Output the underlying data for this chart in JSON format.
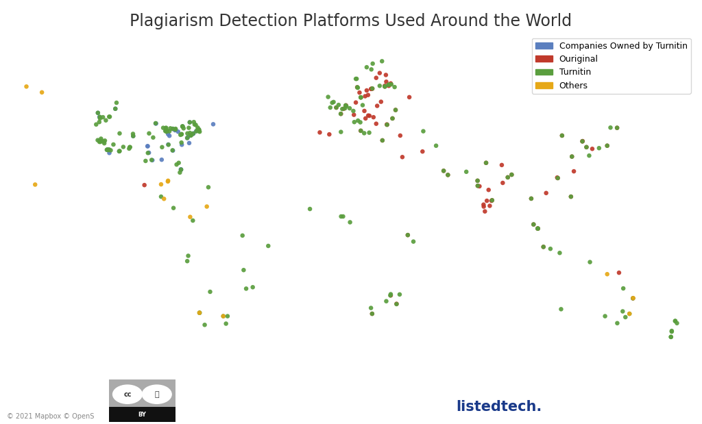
{
  "title": "Plagiarism Detection Platforms Used Around the World",
  "title_fontsize": 17,
  "background_color": "#ffffff",
  "map_land_color": "#e0e0e0",
  "map_ocean_color": "#ffffff",
  "map_border_color": "#ffffff",
  "legend": {
    "labels": [
      "Companies Owned by Turnitin",
      "Ouriginal",
      "Turnitin",
      "Others"
    ],
    "colors": [
      "#5b7fbf",
      "#c0392b",
      "#5a9e3e",
      "#e6a817"
    ]
  },
  "categories": {
    "turnitin_companies": {
      "color": "#5b7fbf",
      "points": [
        [
          -122.4,
          37.8
        ],
        [
          -118.2,
          34.1
        ],
        [
          -87.6,
          41.8
        ],
        [
          -77.0,
          38.9
        ],
        [
          -71.1,
          42.4
        ],
        [
          -73.9,
          40.7
        ],
        [
          -122.3,
          47.6
        ],
        [
          -104.9,
          39.7
        ],
        [
          -84.4,
          33.7
        ],
        [
          -80.2,
          25.8
        ],
        [
          -112.1,
          33.4
        ],
        [
          -117.2,
          32.7
        ],
        [
          -97.4,
          35.5
        ],
        [
          -96.8,
          32.8
        ],
        [
          -90.2,
          29.9
        ],
        [
          -83.0,
          42.3
        ],
        [
          -86.8,
          36.2
        ],
        [
          -81.7,
          41.5
        ],
        [
          -75.2,
          40.0
        ],
        [
          -76.6,
          39.3
        ],
        [
          -93.3,
          44.9
        ],
        [
          -123.1,
          49.3
        ],
        [
          -79.4,
          43.7
        ],
        [
          -114.1,
          51.0
        ],
        [
          -75.7,
          45.4
        ],
        [
          -63.6,
          44.6
        ],
        [
          -71.1,
          42.4
        ],
        [
          -72.3,
          41.8
        ],
        [
          -88.0,
          42.0
        ],
        [
          -93.1,
          44.9
        ],
        [
          -95.0,
          29.7
        ],
        [
          -97.5,
          35.5
        ],
        [
          -80.3,
          25.9
        ],
        [
          -117.3,
          34.1
        ],
        [
          -118.3,
          34.0
        ],
        [
          -122.1,
          37.7
        ],
        [
          -73.8,
          40.8
        ],
        [
          -74.1,
          40.6
        ],
        [
          -76.0,
          36.8
        ],
        [
          -79.8,
          36.1
        ],
        [
          -84.5,
          42.7
        ],
        [
          -83.3,
          42.1
        ],
        [
          -86.2,
          39.8
        ],
        [
          -86.9,
          40.5
        ]
      ]
    },
    "ouriginal": {
      "color": "#c0392b",
      "points": [
        [
          18.1,
          59.3
        ],
        [
          10.7,
          59.9
        ],
        [
          12.6,
          55.7
        ],
        [
          25.0,
          60.2
        ],
        [
          24.9,
          60.5
        ],
        [
          28.0,
          61.5
        ],
        [
          10.0,
          53.6
        ],
        [
          9.0,
          48.5
        ],
        [
          16.4,
          48.2
        ],
        [
          14.4,
          50.1
        ],
        [
          19.1,
          47.5
        ],
        [
          21.0,
          52.2
        ],
        [
          23.7,
          37.9
        ],
        [
          12.5,
          41.9
        ],
        [
          2.3,
          48.9
        ],
        [
          -0.1,
          51.5
        ],
        [
          -3.7,
          40.4
        ],
        [
          -8.6,
          41.2
        ],
        [
          4.9,
          52.4
        ],
        [
          3.7,
          51.0
        ],
        [
          15.0,
          47.0
        ],
        [
          20.5,
          44.8
        ],
        [
          26.1,
          44.4
        ],
        [
          28.9,
          47.0
        ],
        [
          30.5,
          50.5
        ],
        [
          37.6,
          55.8
        ],
        [
          44.4,
          33.3
        ],
        [
          57.5,
          23.6
        ],
        [
          73.8,
          18.9
        ],
        [
          72.9,
          19.1
        ],
        [
          77.2,
          28.6
        ],
        [
          80.3,
          13.1
        ],
        [
          88.4,
          22.6
        ],
        [
          85.3,
          27.7
        ],
        [
          90.4,
          23.7
        ],
        [
          101.7,
          3.1
        ],
        [
          106.8,
          -6.2
        ],
        [
          104.0,
          1.4
        ],
        [
          121.0,
          14.6
        ],
        [
          114.2,
          22.3
        ],
        [
          121.5,
          31.2
        ],
        [
          116.4,
          39.9
        ],
        [
          129.0,
          35.1
        ],
        [
          139.7,
          35.7
        ],
        [
          32.9,
          39.9
        ],
        [
          -99.1,
          19.4
        ],
        [
          36.8,
          -1.3
        ],
        [
          18.4,
          -33.9
        ],
        [
          31.0,
          -29.8
        ],
        [
          28.0,
          -26.3
        ],
        [
          145.8,
          -16.9
        ],
        [
          153.0,
          -27.5
        ],
        [
          17.0,
          48.1
        ],
        [
          23.0,
          53.9
        ],
        [
          26.0,
          44.5
        ],
        [
          34.0,
          31.0
        ],
        [
          55.3,
          25.3
        ],
        [
          103.8,
          1.4
        ],
        [
          100.5,
          13.8
        ],
        [
          108.2,
          16.1
        ],
        [
          122.5,
          25.1
        ],
        [
          113.9,
          22.5
        ],
        [
          127.0,
          37.6
        ],
        [
          126.9,
          37.5
        ],
        [
          144.8,
          43.1
        ],
        [
          132.0,
          34.4
        ],
        [
          80.0,
          12.9
        ],
        [
          77.6,
          12.9
        ],
        [
          78.5,
          17.4
        ],
        [
          72.8,
          21.2
        ],
        [
          85.8,
          20.3
        ],
        [
          76.6,
          8.5
        ],
        [
          76.0,
          10.5
        ],
        [
          75.9,
          11.3
        ],
        [
          79.1,
          10.8
        ],
        [
          18.5,
          59.3
        ],
        [
          17.8,
          59.2
        ],
        [
          15.6,
          58.6
        ],
        [
          11.9,
          57.7
        ],
        [
          14.8,
          56.2
        ],
        [
          16.3,
          56.7
        ],
        [
          20.5,
          63.8
        ],
        [
          22.3,
          65.8
        ],
        [
          25.7,
          62.2
        ],
        [
          27.0,
          60.5
        ],
        [
          25.5,
          65.0
        ]
      ]
    },
    "turnitin": {
      "color": "#5a9e3e",
      "points": [
        [
          -120.5,
          47.5
        ],
        [
          -122.0,
          47.0
        ],
        [
          -119.0,
          46.2
        ],
        [
          -117.0,
          47.7
        ],
        [
          -122.4,
          45.5
        ],
        [
          -124.0,
          44.5
        ],
        [
          -121.5,
          38.6
        ],
        [
          -118.5,
          34.0
        ],
        [
          -117.9,
          33.9
        ],
        [
          -116.5,
          33.8
        ],
        [
          -111.9,
          33.5
        ],
        [
          -106.7,
          35.1
        ],
        [
          -97.3,
          32.7
        ],
        [
          -95.4,
          29.8
        ],
        [
          -98.5,
          29.4
        ],
        [
          -86.2,
          41.7
        ],
        [
          -87.7,
          41.5
        ],
        [
          -83.1,
          42.4
        ],
        [
          -78.9,
          42.9
        ],
        [
          -76.2,
          43.1
        ],
        [
          -71.0,
          42.4
        ],
        [
          -70.9,
          42.3
        ],
        [
          -72.3,
          41.7
        ],
        [
          -74.0,
          40.7
        ],
        [
          -75.3,
          40.0
        ],
        [
          -77.0,
          38.9
        ],
        [
          -80.0,
          37.0
        ],
        [
          -81.4,
          28.6
        ],
        [
          -82.5,
          27.9
        ],
        [
          -84.6,
          33.8
        ],
        [
          -86.7,
          36.1
        ],
        [
          -90.0,
          35.1
        ],
        [
          -94.6,
          39.1
        ],
        [
          -93.3,
          45.0
        ],
        [
          -96.7,
          40.8
        ],
        [
          -104.9,
          39.7
        ],
        [
          -111.9,
          40.8
        ],
        [
          -112.1,
          33.4
        ],
        [
          -118.0,
          34.1
        ],
        [
          -115.1,
          36.2
        ],
        [
          -122.3,
          37.3
        ],
        [
          -123.2,
          38.0
        ],
        [
          -121.0,
          37.7
        ],
        [
          -80.2,
          25.8
        ],
        [
          -80.8,
          24.6
        ],
        [
          -66.1,
          18.5
        ],
        [
          -79.5,
          43.7
        ],
        [
          -75.7,
          45.4
        ],
        [
          -73.6,
          45.5
        ],
        [
          -123.1,
          49.3
        ],
        [
          -113.5,
          53.5
        ],
        [
          -114.1,
          51.0
        ],
        [
          -79.4,
          43.7
        ],
        [
          -57.0,
          -38.0
        ],
        [
          -68.0,
          -38.5
        ],
        [
          -65.2,
          -24.8
        ],
        [
          -47.9,
          -15.8
        ],
        [
          -43.2,
          -22.9
        ],
        [
          -46.6,
          -23.5
        ],
        [
          -48.5,
          -1.5
        ],
        [
          -35.2,
          -5.8
        ],
        [
          -70.6,
          -33.5
        ],
        [
          -76.5,
          -9.9
        ],
        [
          -77.0,
          -12.1
        ],
        [
          -58.4,
          -34.9
        ],
        [
          -56.2,
          -34.9
        ],
        [
          -70.7,
          -33.5
        ],
        [
          -74.1,
          4.7
        ],
        [
          -84.1,
          9.9
        ],
        [
          -90.5,
          14.6
        ],
        [
          -13.7,
          9.5
        ],
        [
          2.4,
          6.4
        ],
        [
          3.4,
          6.4
        ],
        [
          7.0,
          4.0
        ],
        [
          36.8,
          -1.3
        ],
        [
          39.7,
          -4.0
        ],
        [
          28.0,
          -25.8
        ],
        [
          31.0,
          -29.9
        ],
        [
          18.4,
          -33.9
        ],
        [
          32.6,
          -25.9
        ],
        [
          27.8,
          -26.3
        ],
        [
          25.7,
          -28.7
        ],
        [
          17.8,
          -31.5
        ],
        [
          173.0,
          -41.3
        ],
        [
          174.8,
          -36.9
        ],
        [
          151.2,
          -33.9
        ],
        [
          153.0,
          -27.5
        ],
        [
          144.9,
          -37.8
        ],
        [
          138.6,
          -34.9
        ],
        [
          115.9,
          -32.0
        ],
        [
          130.8,
          -12.5
        ],
        [
          149.1,
          -35.3
        ],
        [
          148.0,
          -23.4
        ],
        [
          147.7,
          -32.9
        ],
        [
          172.6,
          -43.5
        ],
        [
          175.7,
          -37.8
        ],
        [
          18.5,
          59.4
        ],
        [
          24.9,
          60.2
        ],
        [
          10.8,
          59.9
        ],
        [
          12.6,
          55.7
        ],
        [
          25.1,
          60.3
        ],
        [
          26.9,
          60.9
        ],
        [
          22.3,
          60.5
        ],
        [
          10.0,
          63.4
        ],
        [
          18.7,
          69.7
        ],
        [
          15.6,
          68.2
        ],
        [
          18.0,
          67.3
        ],
        [
          23.5,
          70.7
        ],
        [
          11.0,
          59.7
        ],
        [
          10.4,
          63.4
        ],
        [
          27.0,
          61.0
        ],
        [
          28.3,
          61.1
        ],
        [
          30.0,
          60.0
        ],
        [
          13.5,
          52.5
        ],
        [
          8.7,
          50.1
        ],
        [
          6.8,
          51.2
        ],
        [
          11.1,
          46.1
        ],
        [
          9.2,
          45.5
        ],
        [
          2.2,
          48.9
        ],
        [
          -0.1,
          51.5
        ],
        [
          1.1,
          52.6
        ],
        [
          -1.5,
          53.8
        ],
        [
          -2.2,
          53.5
        ],
        [
          -3.2,
          51.5
        ],
        [
          -4.3,
          55.9
        ],
        [
          3.0,
          50.9
        ],
        [
          4.4,
          51.2
        ],
        [
          5.1,
          52.1
        ],
        [
          4.7,
          52.4
        ],
        [
          12.5,
          55.7
        ],
        [
          12.6,
          41.9
        ],
        [
          2.3,
          41.4
        ],
        [
          12.3,
          45.4
        ],
        [
          14.3,
          40.9
        ],
        [
          16.9,
          41.1
        ],
        [
          23.7,
          37.9
        ],
        [
          26.1,
          44.4
        ],
        [
          28.9,
          47.0
        ],
        [
          30.5,
          50.5
        ],
        [
          44.8,
          41.7
        ],
        [
          51.4,
          35.7
        ],
        [
          57.5,
          23.6
        ],
        [
          55.3,
          25.3
        ],
        [
          67.0,
          24.9
        ],
        [
          72.9,
          19.1
        ],
        [
          72.8,
          21.2
        ],
        [
          77.2,
          28.6
        ],
        [
          80.3,
          13.1
        ],
        [
          88.4,
          22.6
        ],
        [
          90.4,
          23.7
        ],
        [
          101.7,
          3.1
        ],
        [
          106.8,
          -6.2
        ],
        [
          110.4,
          -7.0
        ],
        [
          115.2,
          -8.7
        ],
        [
          104.0,
          1.4
        ],
        [
          100.5,
          13.8
        ],
        [
          103.8,
          1.4
        ],
        [
          121.0,
          14.6
        ],
        [
          114.2,
          22.3
        ],
        [
          121.5,
          31.2
        ],
        [
          116.4,
          39.9
        ],
        [
          126.9,
          37.5
        ],
        [
          129.0,
          35.1
        ],
        [
          135.5,
          34.7
        ],
        [
          139.7,
          35.7
        ],
        [
          141.4,
          43.2
        ],
        [
          144.8,
          43.1
        ],
        [
          130.4,
          31.6
        ],
        [
          174.8,
          -36.9
        ],
        [
          173.0,
          -41.0
        ],
        [
          172.6,
          -43.5
        ],
        [
          -105.0,
          40.6
        ],
        [
          -107.0,
          34.5
        ],
        [
          -106.5,
          35.1
        ],
        [
          -110.0,
          35.2
        ],
        [
          -119.8,
          36.7
        ],
        [
          -120.0,
          37.4
        ],
        [
          -119.5,
          37.8
        ],
        [
          -121.8,
          37.3
        ],
        [
          -122.1,
          47.6
        ],
        [
          -117.5,
          34.1
        ],
        [
          -117.3,
          47.7
        ],
        [
          -89.4,
          43.1
        ],
        [
          -88.1,
          43.0
        ],
        [
          -87.9,
          43.1
        ],
        [
          -87.6,
          41.9
        ],
        [
          -87.5,
          41.9
        ],
        [
          -87.8,
          42.0
        ],
        [
          -88.3,
          41.8
        ],
        [
          -71.5,
          42.5
        ],
        [
          -71.0,
          41.8
        ],
        [
          -70.6,
          41.5
        ],
        [
          -83.0,
          42.7
        ],
        [
          -84.4,
          42.7
        ],
        [
          -85.7,
          42.9
        ],
        [
          -73.2,
          44.5
        ],
        [
          -72.6,
          44.3
        ],
        [
          -71.6,
          43.2
        ],
        [
          -76.9,
          40.8
        ],
        [
          -75.6,
          41.0
        ],
        [
          -75.0,
          40.0
        ],
        [
          -80.0,
          40.4
        ],
        [
          -80.5,
          40.2
        ],
        [
          -79.9,
          40.5
        ]
      ]
    },
    "others": {
      "color": "#e6a817",
      "points": [
        [
          -152.0,
          57.8
        ],
        [
          -160.0,
          60.2
        ],
        [
          -155.5,
          19.6
        ],
        [
          -86.9,
          21.2
        ],
        [
          -89.0,
          13.7
        ],
        [
          -75.5,
          6.2
        ],
        [
          -66.9,
          10.5
        ],
        [
          -58.4,
          -34.9
        ],
        [
          -70.7,
          -33.5
        ],
        [
          139.7,
          -17.5
        ],
        [
          153.1,
          -27.4
        ],
        [
          151.2,
          -33.9
        ],
        [
          -87.0,
          20.9
        ],
        [
          -90.5,
          19.7
        ]
      ]
    }
  },
  "annotations": {
    "copyright": "© 2021 Mapbox © OpenS",
    "watermark_text": "listedtech.",
    "watermark_color": "#1a3a8a"
  },
  "map_extent": [
    -170,
    185,
    -62,
    82
  ],
  "fig_size": [
    10.24,
    6.19
  ],
  "dpi": 100,
  "dot_size": 22
}
